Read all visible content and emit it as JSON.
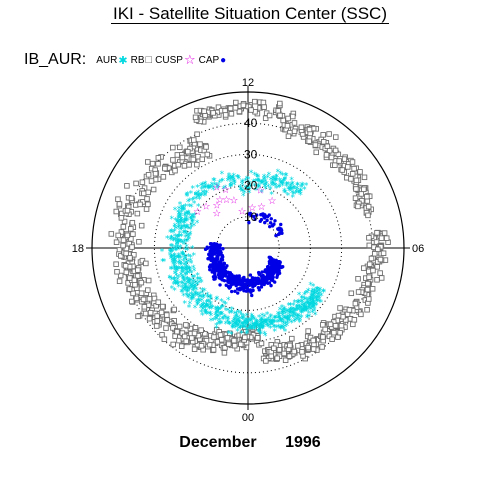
{
  "header": {
    "title": "IKI - Satellite Situation Center (SSC)"
  },
  "legend": {
    "prefix": "IB_AUR:",
    "items": [
      {
        "label": "AUR",
        "marker": "asterisk",
        "color": "#00d8e0"
      },
      {
        "label": "RB",
        "marker": "square",
        "color": "#777777"
      },
      {
        "label": "CUSP",
        "marker": "star",
        "color": "#e000e0"
      },
      {
        "label": "CAP",
        "marker": "dot",
        "color": "#0000e6"
      }
    ]
  },
  "caption": {
    "month": "December",
    "year": "1996"
  },
  "chart_data": {
    "type": "scatter",
    "projection": "polar (magnetic local time vs colatitude)",
    "time_labels": {
      "top": "12",
      "left": "18",
      "right": "06",
      "bottom": "00"
    },
    "radial_ticks": [
      "10",
      "20",
      "30",
      "40"
    ],
    "colatitude_range": [
      0,
      50
    ],
    "grid": true,
    "legend_position": "top-left",
    "series": [
      {
        "name": "AUR",
        "marker": "asterisk",
        "color": "#00d8e0"
      },
      {
        "name": "RB",
        "marker": "square",
        "color": "#777777"
      },
      {
        "name": "CUSP",
        "marker": "star",
        "color": "#e000e0",
        "points": [
          [
            13.1,
            16
          ],
          [
            13.6,
            17
          ],
          [
            14.0,
            18
          ],
          [
            14.4,
            17
          ],
          [
            15.0,
            19
          ],
          [
            13.4,
            20
          ],
          [
            14.8,
            15
          ],
          [
            11.6,
            13
          ],
          [
            10.8,
            14
          ],
          [
            11.2,
            19
          ],
          [
            12.6,
            12
          ],
          [
            13.8,
            22
          ],
          [
            15.6,
            20
          ],
          [
            10.2,
            17
          ]
        ]
      },
      {
        "name": "CAP",
        "marker": "dot",
        "color": "#0000e6"
      }
    ]
  }
}
